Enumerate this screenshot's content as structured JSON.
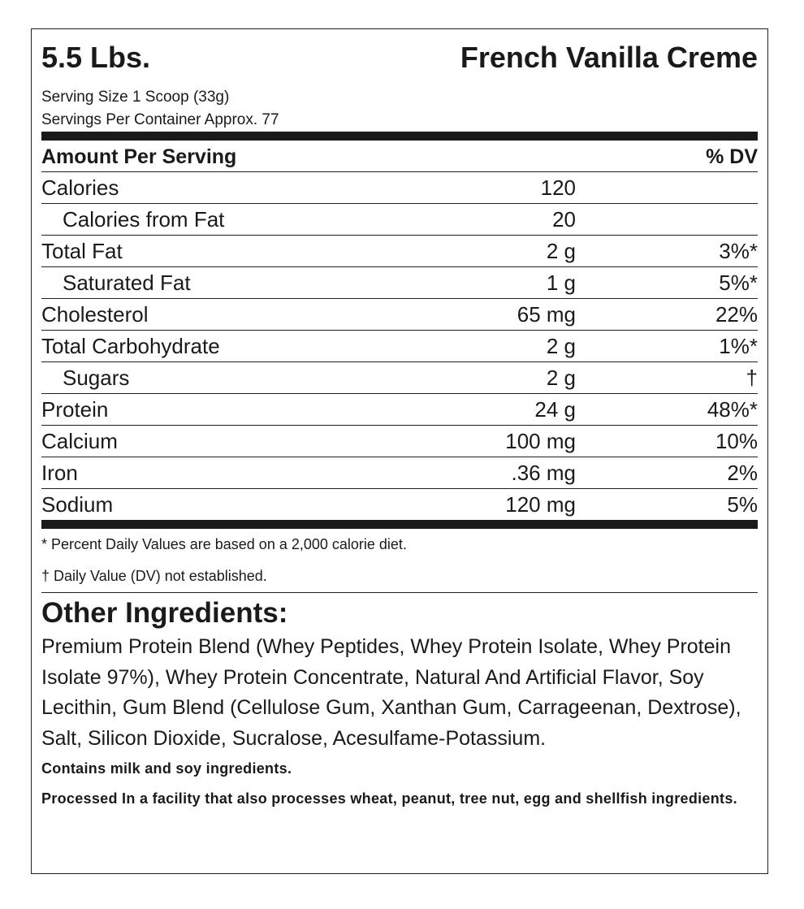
{
  "header": {
    "size": "5.5 Lbs.",
    "flavor": "French Vanilla Creme",
    "serving_size": "Serving Size 1 Scoop (33g)",
    "servings_per_container": "Servings Per Container Approx. 77"
  },
  "table": {
    "header_left": "Amount Per Serving",
    "header_right": "% DV",
    "rows": [
      {
        "name": "Calories",
        "amount": "120",
        "dv": "",
        "indent": false
      },
      {
        "name": "Calories from Fat",
        "amount": "20",
        "dv": "",
        "indent": true
      },
      {
        "name": "Total Fat",
        "amount": "2 g",
        "dv": "3%*",
        "indent": false
      },
      {
        "name": "Saturated Fat",
        "amount": "1 g",
        "dv": "5%*",
        "indent": true
      },
      {
        "name": "Cholesterol",
        "amount": "65 mg",
        "dv": "22%",
        "indent": false
      },
      {
        "name": "Total Carbohydrate",
        "amount": "2 g",
        "dv": "1%*",
        "indent": false
      },
      {
        "name": "Sugars",
        "amount": "2 g",
        "dv": "†",
        "indent": true
      },
      {
        "name": "Protein",
        "amount": "24 g",
        "dv": "48%*",
        "indent": false
      },
      {
        "name": "Calcium",
        "amount": "100 mg",
        "dv": "10%",
        "indent": false
      },
      {
        "name": "Iron",
        "amount": ".36 mg",
        "dv": "2%",
        "indent": false
      },
      {
        "name": "Sodium",
        "amount": "120 mg",
        "dv": "5%",
        "indent": false
      }
    ]
  },
  "footnotes": [
    "* Percent Daily Values are based on a 2,000 calorie diet.",
    "† Daily Value (DV) not established."
  ],
  "ingredients": {
    "title": "Other Ingredients:",
    "text": "Premium Protein Blend (Whey Peptides, Whey Protein Isolate, Whey Protein Isolate 97%), Whey Protein Concentrate, Natural And Artificial Flavor, Soy Lecithin, Gum Blend (Cellulose Gum, Xanthan Gum, Carrageenan, Dextrose), Salt, Silicon Dioxide, Sucralose, Acesulfame-Potassium.",
    "contains": "Contains milk and soy ingredients.",
    "facility": "Processed In a facility that also processes wheat, peanut, tree nut, egg and shellfish ingredients."
  }
}
